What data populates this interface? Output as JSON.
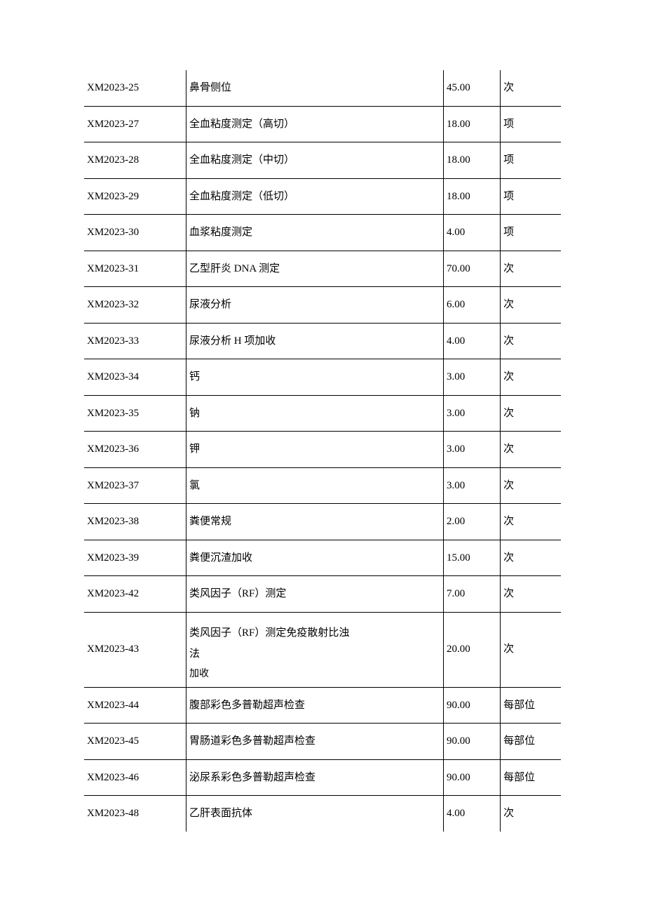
{
  "table": {
    "columns": {
      "code_width": 113,
      "name_width": 285,
      "price_width": 63,
      "unit_width": 67
    },
    "border_color": "#000000",
    "background_color": "#ffffff",
    "text_color": "#000000",
    "font_size": 15,
    "font_family": "SimSun",
    "rows": [
      {
        "code": "XM2023-25",
        "name": "鼻骨侧位",
        "price": "45.00",
        "unit": "次"
      },
      {
        "code": "XM2023-27",
        "name": "全血粘度测定（高切）",
        "price": "18.00",
        "unit": "项"
      },
      {
        "code": "XM2023-28",
        "name": "全血粘度测定（中切）",
        "price": "18.00",
        "unit": "项"
      },
      {
        "code": "XM2023-29",
        "name": "全血粘度测定（低切）",
        "price": "18.00",
        "unit": "项"
      },
      {
        "code": "XM2023-30",
        "name": "血浆粘度测定",
        "price": "4.00",
        "unit": "项"
      },
      {
        "code": "XM2023-31",
        "name": "乙型肝炎 DNA 测定",
        "price": "70.00",
        "unit": "次"
      },
      {
        "code": "XM2023-32",
        "name": "尿液分析",
        "price": "6.00",
        "unit": "次"
      },
      {
        "code": "XM2023-33",
        "name": "尿液分析 H 项加收",
        "price": "4.00",
        "unit": "次"
      },
      {
        "code": "XM2023-34",
        "name": "钙",
        "price": "3.00",
        "unit": "次"
      },
      {
        "code": "XM2023-35",
        "name": "钠",
        "price": "3.00",
        "unit": "次"
      },
      {
        "code": "XM2023-36",
        "name": "钾",
        "price": "3.00",
        "unit": "次"
      },
      {
        "code": "XM2023-37",
        "name": "氯",
        "price": "3.00",
        "unit": "次"
      },
      {
        "code": "XM2023-38",
        "name": "粪便常规",
        "price": "2.00",
        "unit": "次"
      },
      {
        "code": "XM2023-39",
        "name": "粪便沉渣加收",
        "price": "15.00",
        "unit": "次"
      },
      {
        "code": "XM2023-42",
        "name": "类风因子（RF）测定",
        "price": "7.00",
        "unit": "次"
      },
      {
        "code": "XM2023-43",
        "name_line1": "类风因子（RF）测定免疫散射比浊",
        "name_line2": "法",
        "name_line3": "加收",
        "price": "20.00",
        "unit": "次",
        "multiline": true
      },
      {
        "code": "XM2023-44",
        "name": "腹部彩色多普勒超声检查",
        "price": "90.00",
        "unit": "每部位"
      },
      {
        "code": "XM2023-45",
        "name": "胃肠道彩色多普勒超声检查",
        "price": "90.00",
        "unit": "每部位"
      },
      {
        "code": "XM2023-46",
        "name": "泌尿系彩色多普勒超声检查",
        "price": "90.00",
        "unit": "每部位"
      },
      {
        "code": "XM2023-48",
        "name": "乙肝表面抗体",
        "price": "4.00",
        "unit": "次"
      }
    ]
  }
}
